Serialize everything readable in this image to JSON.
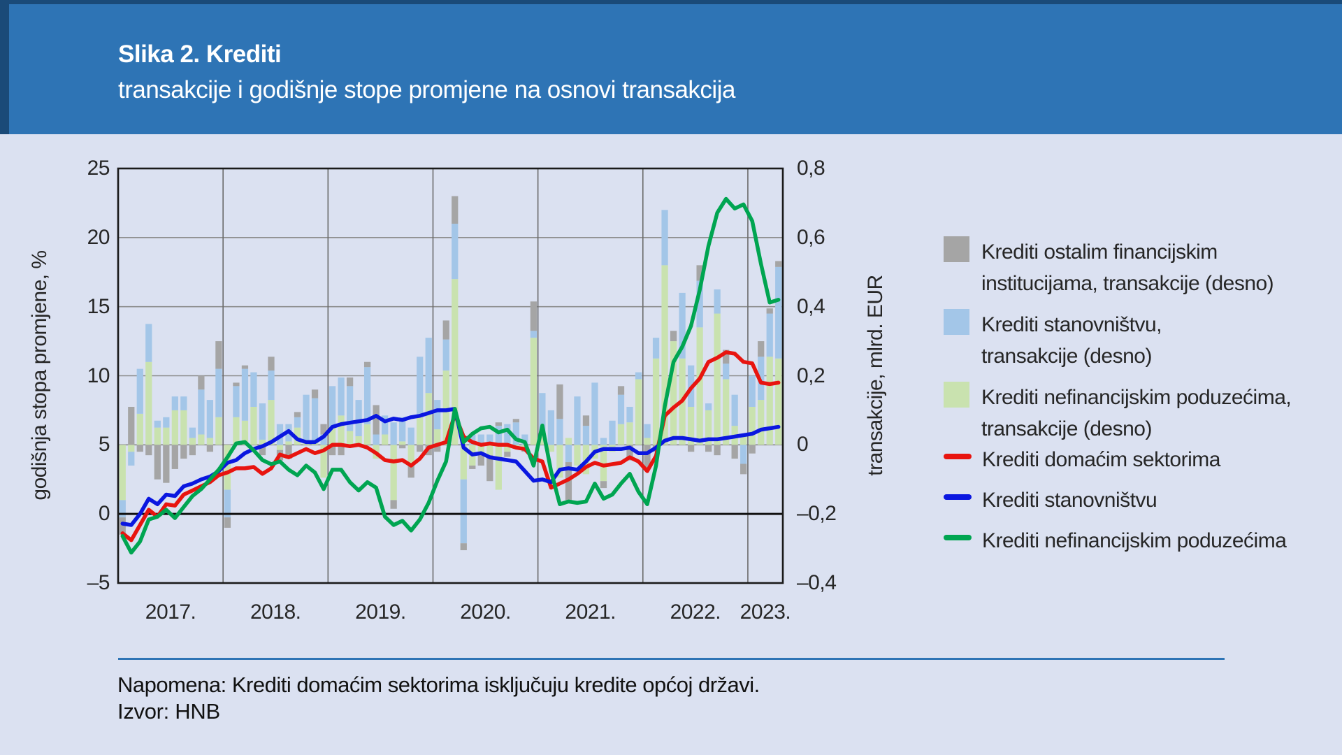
{
  "header": {
    "title": "Slika 2. Krediti",
    "subtitle": "transakcije i godišnje stope promjene na osnovi transakcija"
  },
  "axes": {
    "left_title": "godišnja stopa promjene, %",
    "right_title": "transakcije, mlrd. EUR",
    "left_ticks": [
      "25",
      "20",
      "15",
      "10",
      "5",
      "0",
      "–5"
    ],
    "right_ticks": [
      "0,8",
      "0,6",
      "0,4",
      "0,2",
      "0",
      "–0,2",
      "–0,4"
    ]
  },
  "notes": {
    "note": "Napomena: Krediti domaćim sektorima isključuju kredite općoj državi.",
    "source": "Izvor: HNB"
  },
  "legend": {
    "items": [
      {
        "swatch": "square",
        "color": "#a5a5a5",
        "line1": "Krediti ostalim financijskim",
        "line2": "institucijama, transakcije (desno)"
      },
      {
        "swatch": "square",
        "color": "#a3c6e8",
        "line1": "Krediti stanovništvu,",
        "line2": "transakcije (desno)"
      },
      {
        "swatch": "square",
        "color": "#c9e2af",
        "line1": "Krediti nefinancijskim poduzećima,",
        "line2": "transakcije (desno)"
      },
      {
        "swatch": "line",
        "color": "#e8140f",
        "line1": "Krediti domaćim sektorima",
        "line2": ""
      },
      {
        "swatch": "line",
        "color": "#0a17e0",
        "line1": "Krediti stanovništvu",
        "line2": ""
      },
      {
        "swatch": "line",
        "color": "#00a551",
        "line1": "Krediti nefinancijskim poduzećima",
        "line2": ""
      }
    ]
  },
  "colors": {
    "page_bg": "#dbe1f1",
    "header_bg": "#2e74b5",
    "header_border": "#1a4a78",
    "grid": "#8c8c8c",
    "grid_year": "#6b6b6b",
    "frame": "#1a1a1a",
    "zero_line": "#111111",
    "bar_green": "#c9e2af",
    "bar_blue": "#a3c6e8",
    "bar_gray": "#a5a5a5",
    "line_red": "#e8140f",
    "line_blue": "#0a17e0",
    "line_green": "#00a551",
    "note_rule": "#2e74b5"
  },
  "chart_data": {
    "type": "bar+line",
    "title": "Slika 2. Krediti — transakcije i godišnje stope promjene na osnovi transakcija",
    "left_axis": {
      "label": "godišnja stopa promjene, %",
      "min": -5,
      "max": 25,
      "tick_step": 5
    },
    "right_axis": {
      "label": "transakcije, mlrd. EUR",
      "min": -0.4,
      "max": 0.8,
      "tick_step": 0.2
    },
    "x_year_labels": [
      "2017.",
      "2018.",
      "2019.",
      "2020.",
      "2021.",
      "2022.",
      "2023."
    ],
    "months_per_year": [
      12,
      12,
      12,
      12,
      12,
      12,
      4
    ],
    "months": [
      "2017-01",
      "2017-02",
      "2017-03",
      "2017-04",
      "2017-05",
      "2017-06",
      "2017-07",
      "2017-08",
      "2017-09",
      "2017-10",
      "2017-11",
      "2017-12",
      "2018-01",
      "2018-02",
      "2018-03",
      "2018-04",
      "2018-05",
      "2018-06",
      "2018-07",
      "2018-08",
      "2018-09",
      "2018-10",
      "2018-11",
      "2018-12",
      "2019-01",
      "2019-02",
      "2019-03",
      "2019-04",
      "2019-05",
      "2019-06",
      "2019-07",
      "2019-08",
      "2019-09",
      "2019-10",
      "2019-11",
      "2019-12",
      "2020-01",
      "2020-02",
      "2020-03",
      "2020-04",
      "2020-05",
      "2020-06",
      "2020-07",
      "2020-08",
      "2020-09",
      "2020-10",
      "2020-11",
      "2020-12",
      "2021-01",
      "2021-02",
      "2021-03",
      "2021-04",
      "2021-05",
      "2021-06",
      "2021-07",
      "2021-08",
      "2021-09",
      "2021-10",
      "2021-11",
      "2021-12",
      "2022-01",
      "2022-02",
      "2022-03",
      "2022-04",
      "2022-05",
      "2022-06",
      "2022-07",
      "2022-08",
      "2022-09",
      "2022-10",
      "2022-11",
      "2022-12",
      "2023-01",
      "2023-02",
      "2023-03",
      "2023-04"
    ],
    "line_series": [
      {
        "name": "Krediti domaćim sektorima",
        "color_key": "line_red",
        "axis": "left",
        "values": [
          -1.4,
          -1.9,
          -0.8,
          0.3,
          -0.2,
          0.7,
          0.6,
          1.4,
          1.7,
          2.0,
          2.3,
          2.8,
          3.0,
          3.3,
          3.3,
          3.4,
          2.9,
          3.3,
          4.3,
          4.1,
          4.4,
          4.7,
          4.4,
          4.6,
          5.0,
          5.0,
          4.9,
          5.0,
          4.8,
          4.4,
          3.9,
          3.8,
          3.9,
          3.5,
          4.0,
          4.8,
          5.0,
          5.2,
          7.2,
          5.6,
          5.2,
          5.0,
          5.1,
          5.0,
          5.0,
          4.8,
          4.7,
          4.0,
          3.8,
          1.9,
          2.2,
          2.5,
          2.9,
          3.4,
          3.7,
          3.5,
          3.6,
          3.7,
          4.1,
          3.8,
          3.1,
          4.2,
          7.1,
          7.7,
          8.2,
          9.1,
          9.8,
          11.0,
          11.3,
          11.7,
          11.6,
          11.0,
          10.9,
          9.5,
          9.4,
          9.5
        ]
      },
      {
        "name": "Krediti stanovništvu",
        "color_key": "line_blue",
        "axis": "left",
        "values": [
          -0.7,
          -0.8,
          0.0,
          1.1,
          0.7,
          1.4,
          1.3,
          2.0,
          2.2,
          2.5,
          2.7,
          3.1,
          3.7,
          3.9,
          4.4,
          4.7,
          4.9,
          5.2,
          5.6,
          6.0,
          5.4,
          5.2,
          5.2,
          5.6,
          6.3,
          6.5,
          6.6,
          6.7,
          6.8,
          7.1,
          6.7,
          6.9,
          6.8,
          7.0,
          7.1,
          7.3,
          7.5,
          7.5,
          7.6,
          4.8,
          4.3,
          4.4,
          4.1,
          4.0,
          3.9,
          3.8,
          3.1,
          2.4,
          2.5,
          2.3,
          3.2,
          3.3,
          3.2,
          3.8,
          4.5,
          4.7,
          4.7,
          4.7,
          4.8,
          4.4,
          4.4,
          4.8,
          5.3,
          5.5,
          5.5,
          5.4,
          5.3,
          5.4,
          5.4,
          5.5,
          5.6,
          5.7,
          5.8,
          6.1,
          6.2,
          6.3
        ]
      },
      {
        "name": "Krediti nefinancijskim poduzećima",
        "color_key": "line_green",
        "axis": "left",
        "values": [
          -1.6,
          -2.8,
          -2.0,
          -0.4,
          -0.2,
          0.3,
          -0.3,
          0.5,
          1.3,
          1.8,
          2.5,
          3.2,
          4.1,
          5.1,
          5.2,
          4.6,
          3.9,
          3.6,
          3.8,
          3.2,
          2.8,
          3.5,
          3.0,
          1.8,
          3.2,
          3.2,
          2.3,
          1.7,
          2.3,
          1.9,
          -0.2,
          -0.8,
          -0.5,
          -1.2,
          -0.4,
          0.8,
          2.4,
          3.8,
          7.6,
          5.2,
          5.8,
          6.2,
          6.3,
          5.9,
          6.1,
          5.4,
          5.2,
          3.5,
          6.4,
          3.1,
          0.7,
          0.9,
          0.8,
          0.9,
          2.2,
          1.1,
          1.4,
          2.2,
          2.9,
          1.6,
          0.7,
          3.5,
          7.8,
          11.0,
          12.1,
          13.6,
          16.2,
          19.4,
          21.8,
          22.8,
          22.1,
          22.4,
          21.2,
          18.1,
          15.3,
          15.5
        ]
      }
    ],
    "bar_series": [
      {
        "name": "Krediti nefinancijskim poduzećima, transakcije (desno)",
        "color_key": "bar_green",
        "axis": "right",
        "values": [
          -0.16,
          -0.02,
          0.09,
          0.24,
          0.05,
          0.05,
          0.1,
          0.1,
          0.02,
          0.03,
          0.02,
          0.08,
          -0.13,
          0.08,
          0.07,
          0.11,
          0.015,
          0.13,
          -0.015,
          0.01,
          0.05,
          0.01,
          0.005,
          -0.095,
          0.05,
          0.085,
          0.04,
          0.025,
          0.06,
          -0.04,
          0.03,
          -0.16,
          0.01,
          -0.06,
          0.08,
          0.15,
          0.045,
          0.215,
          0.48,
          -0.1,
          -0.06,
          -0.03,
          -0.03,
          -0.13,
          -0.02,
          -0.01,
          -0.01,
          0.31,
          0.03,
          -0.02,
          -0.095,
          0.02,
          -0.06,
          -0.085,
          -0.04,
          -0.105,
          -0.02,
          0.06,
          0.065,
          0.19,
          0.02,
          0.25,
          0.52,
          0.3,
          0.25,
          0.11,
          0.34,
          0.1,
          0.38,
          0.19,
          0.055,
          0.03,
          0.11,
          0.13,
          0.255,
          0.25
        ]
      },
      {
        "name": "Krediti stanovništvu, transakcije (desno)",
        "color_key": "bar_blue",
        "axis": "right",
        "values": [
          -0.05,
          -0.04,
          0.13,
          0.11,
          0.02,
          0.03,
          0.04,
          0.04,
          0.03,
          0.13,
          0.11,
          0.14,
          -0.08,
          0.09,
          0.15,
          0.1,
          0.105,
          0.085,
          0.06,
          0.05,
          0.03,
          0.135,
          0.13,
          0.03,
          0.12,
          0.11,
          0.13,
          0.105,
          0.165,
          0.03,
          0.055,
          0.065,
          0.07,
          0.05,
          0.175,
          0.16,
          0.085,
          0.09,
          0.16,
          -0.185,
          0.03,
          0.03,
          0.03,
          0.055,
          0.06,
          0.065,
          0.03,
          0.02,
          0.12,
          0.1,
          0.075,
          -0.05,
          0.14,
          0.055,
          0.18,
          0.02,
          0.07,
          0.085,
          0.045,
          0.02,
          0.04,
          0.06,
          0.16,
          0.0,
          0.19,
          0.12,
          0.135,
          0.02,
          0.07,
          0.045,
          0.09,
          -0.055,
          0.09,
          0.125,
          0.125,
          0.265
        ]
      },
      {
        "name": "Krediti ostalim financijskim institucijama, transakcije (desno)",
        "color_key": "bar_gray",
        "axis": "right",
        "values": [
          -0.05,
          0.11,
          -0.02,
          -0.03,
          -0.1,
          -0.11,
          -0.07,
          -0.04,
          -0.03,
          0.04,
          -0.02,
          0.08,
          -0.03,
          0.01,
          0.01,
          0.0,
          -0.03,
          0.04,
          -0.03,
          -0.04,
          0.015,
          0.0,
          0.025,
          0.03,
          -0.03,
          -0.03,
          0.025,
          0.0,
          0.015,
          0.085,
          0.0,
          -0.025,
          -0.01,
          -0.035,
          -0.02,
          -0.03,
          -0.02,
          0.055,
          0.08,
          -0.02,
          -0.01,
          -0.03,
          -0.075,
          0.01,
          -0.015,
          0.01,
          -0.01,
          0.085,
          0.0,
          0.0,
          0.1,
          -0.11,
          0.0,
          0.03,
          0.0,
          -0.02,
          0.0,
          0.025,
          -0.045,
          0.0,
          -0.07,
          -0.02,
          0.0,
          0.03,
          0.0,
          -0.02,
          0.045,
          -0.02,
          -0.03,
          0.04,
          -0.04,
          -0.03,
          -0.025,
          0.045,
          0.015,
          0.017
        ]
      }
    ],
    "grid": "on",
    "legend_position": "right"
  }
}
